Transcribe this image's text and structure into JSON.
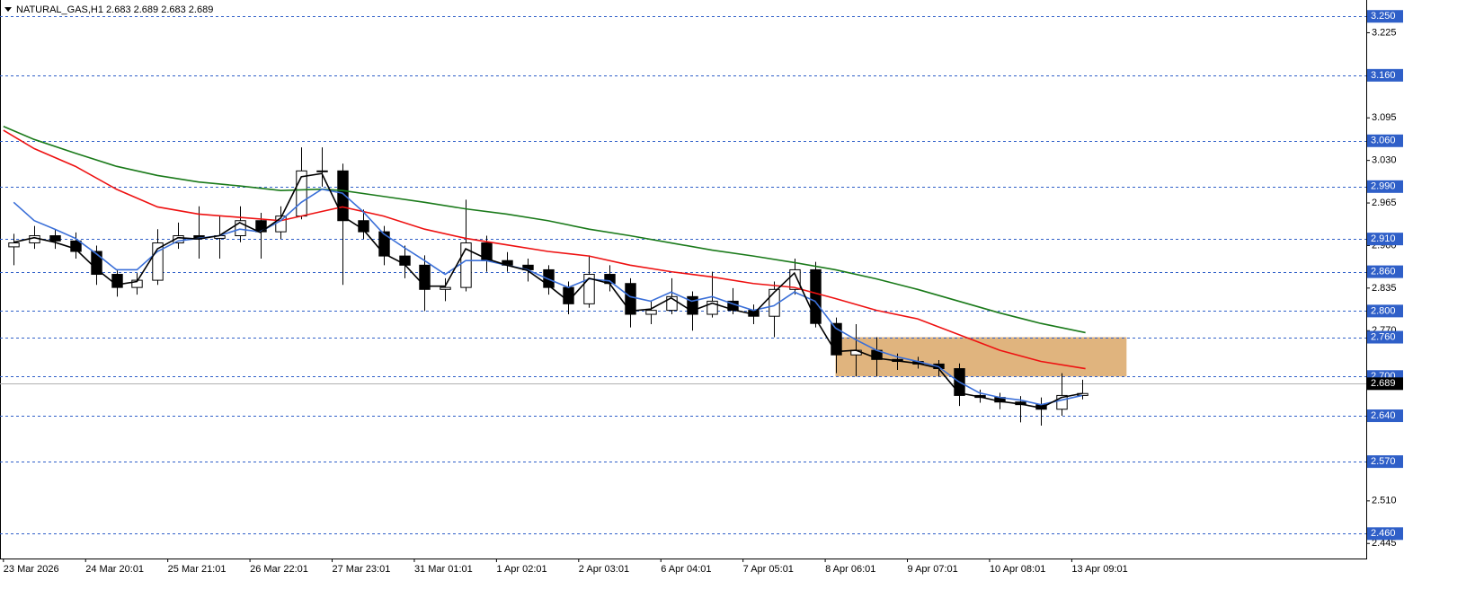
{
  "chart_data": {
    "type": "candlestick",
    "title": "NATURAL_GAS,H1  2.683 2.689 2.683 2.689",
    "xlim": [
      -1,
      398
    ],
    "ylim": [
      2.422,
      3.275
    ],
    "xticks": [
      {
        "value": 0,
        "label": "23 Mar 2026"
      },
      {
        "value": 24,
        "label": "24 Mar 20:01"
      },
      {
        "value": 48,
        "label": "25 Mar 21:01"
      },
      {
        "value": 72,
        "label": "26 Mar 22:01"
      },
      {
        "value": 96,
        "label": "27 Mar 23:01"
      },
      {
        "value": 120,
        "label": "31 Mar 01:01"
      },
      {
        "value": 144,
        "label": "1 Apr 02:01"
      },
      {
        "value": 168,
        "label": "2 Apr 03:01"
      },
      {
        "value": 192,
        "label": "6 Apr 04:01"
      },
      {
        "value": 216,
        "label": "7 Apr 05:01"
      },
      {
        "value": 240,
        "label": "8 Apr 06:01"
      },
      {
        "value": 264,
        "label": "9 Apr 07:01"
      },
      {
        "value": 288,
        "label": "10 Apr 08:01"
      },
      {
        "value": 312,
        "label": "13 Apr 09:01"
      }
    ],
    "yticks": [
      3.225,
      3.095,
      {
        "value": 3.03,
        "label": "3.030"
      },
      2.965,
      {
        "value": 2.9,
        "label": "2.900"
      },
      2.835,
      {
        "value": 2.77,
        "label": "2.770"
      },
      {
        "value": 2.51,
        "label": "2.510"
      },
      2.445
    ],
    "x": [
      3,
      9,
      15,
      21,
      27,
      33,
      39,
      45,
      51,
      57,
      63,
      69,
      75,
      81,
      87,
      93,
      99,
      105,
      111,
      117,
      123,
      129,
      135,
      141,
      147,
      153,
      159,
      165,
      171,
      177,
      183,
      189,
      195,
      201,
      207,
      213,
      219,
      225,
      231,
      237,
      243,
      249,
      255,
      261,
      267,
      273,
      279,
      285,
      291,
      297,
      303,
      309,
      315
    ],
    "open": [
      2.898,
      2.904,
      2.915,
      2.907,
      2.891,
      2.856,
      2.836,
      2.847,
      2.904,
      2.915,
      2.911,
      2.915,
      2.938,
      2.921,
      2.945,
      3.014,
      3.014,
      2.938,
      2.921,
      2.884,
      2.87,
      2.833,
      2.836,
      2.904,
      2.877,
      2.87,
      2.863,
      2.836,
      2.811,
      2.856,
      2.842,
      2.795,
      2.801,
      2.822,
      2.795,
      2.815,
      2.801,
      2.792,
      2.833,
      2.863,
      2.781,
      2.733,
      2.74,
      2.726,
      2.723,
      2.719,
      2.712,
      2.671,
      2.668,
      2.661,
      2.657,
      2.65,
      2.671
    ],
    "high": [
      2.918,
      2.93,
      2.925,
      2.92,
      2.9,
      2.862,
      2.858,
      2.925,
      2.935,
      2.96,
      2.945,
      2.96,
      2.95,
      2.96,
      3.05,
      3.05,
      3.025,
      2.955,
      2.93,
      2.9,
      2.885,
      2.85,
      2.97,
      2.915,
      2.89,
      2.88,
      2.87,
      2.845,
      2.885,
      2.87,
      2.85,
      2.815,
      2.85,
      2.83,
      2.86,
      2.835,
      2.81,
      2.845,
      2.88,
      2.875,
      2.79,
      2.78,
      2.76,
      2.735,
      2.73,
      2.725,
      2.72,
      2.68,
      2.675,
      2.67,
      2.668,
      2.705,
      2.695
    ],
    "low": [
      2.87,
      2.895,
      2.895,
      2.88,
      2.84,
      2.822,
      2.825,
      2.84,
      2.895,
      2.88,
      2.88,
      2.905,
      2.88,
      2.91,
      2.94,
      2.99,
      2.84,
      2.91,
      2.87,
      2.85,
      2.8,
      2.815,
      2.83,
      2.86,
      2.86,
      2.845,
      2.825,
      2.795,
      2.805,
      2.83,
      2.775,
      2.78,
      2.795,
      2.77,
      2.79,
      2.795,
      2.78,
      2.76,
      2.825,
      2.775,
      2.705,
      2.7,
      2.7,
      2.71,
      2.712,
      2.7,
      2.655,
      2.66,
      2.65,
      2.63,
      2.625,
      2.64,
      2.665
    ],
    "close": [
      2.904,
      2.915,
      2.907,
      2.891,
      2.856,
      2.836,
      2.847,
      2.904,
      2.915,
      2.911,
      2.915,
      2.938,
      2.921,
      2.945,
      3.014,
      3.014,
      2.938,
      2.921,
      2.884,
      2.87,
      2.833,
      2.836,
      2.904,
      2.877,
      2.87,
      2.863,
      2.836,
      2.811,
      2.856,
      2.842,
      2.795,
      2.801,
      2.822,
      2.795,
      2.815,
      2.801,
      2.792,
      2.833,
      2.863,
      2.781,
      2.733,
      2.74,
      2.726,
      2.723,
      2.719,
      2.712,
      2.671,
      2.668,
      2.661,
      2.657,
      2.65,
      2.671,
      2.674
    ],
    "series": [
      {
        "color": "#1a7a1a",
        "x": [
          0,
          9,
          21,
          33,
          45,
          57,
          69,
          81,
          93,
          99,
          111,
          123,
          135,
          147,
          159,
          171,
          183,
          195,
          207,
          219,
          231,
          243,
          255,
          267,
          279,
          291,
          303,
          316
        ],
        "values": [
          3.082,
          3.062,
          3.041,
          3.021,
          3.007,
          2.997,
          2.991,
          2.984,
          2.986,
          2.984,
          2.975,
          2.966,
          2.956,
          2.948,
          2.938,
          2.925,
          2.915,
          2.904,
          2.893,
          2.884,
          2.874,
          2.863,
          2.849,
          2.833,
          2.815,
          2.797,
          2.781,
          2.767
        ]
      },
      {
        "color": "#ee1111",
        "x": [
          0,
          9,
          21,
          33,
          45,
          57,
          69,
          81,
          93,
          99,
          111,
          123,
          135,
          147,
          159,
          171,
          183,
          195,
          207,
          219,
          231,
          243,
          255,
          267,
          279,
          291,
          303,
          316
        ],
        "values": [
          3.076,
          3.048,
          3.021,
          2.986,
          2.959,
          2.948,
          2.943,
          2.938,
          2.952,
          2.959,
          2.945,
          2.925,
          2.911,
          2.901,
          2.891,
          2.884,
          2.87,
          2.86,
          2.852,
          2.842,
          2.836,
          2.819,
          2.801,
          2.788,
          2.764,
          2.74,
          2.723,
          2.712
        ]
      },
      {
        "color": "#3a6fd8",
        "values": [
          2.966,
          2.938,
          2.925,
          2.911,
          2.888,
          2.863,
          2.863,
          2.891,
          2.907,
          2.911,
          2.915,
          2.925,
          2.921,
          2.938,
          2.966,
          2.986,
          2.98,
          2.952,
          2.918,
          2.897,
          2.877,
          2.856,
          2.877,
          2.877,
          2.87,
          2.863,
          2.849,
          2.836,
          2.849,
          2.846,
          2.822,
          2.815,
          2.829,
          2.815,
          2.822,
          2.811,
          2.801,
          2.808,
          2.829,
          2.815,
          2.774,
          2.756,
          2.74,
          2.73,
          2.723,
          2.715,
          2.692,
          2.675,
          2.668,
          2.664,
          2.657,
          2.664,
          2.671
        ]
      },
      {
        "color": "#000000",
        "values": [
          2.905,
          2.912,
          2.905,
          2.895,
          2.865,
          2.84,
          2.845,
          2.895,
          2.912,
          2.91,
          2.915,
          2.935,
          2.92,
          2.942,
          3.005,
          3.01,
          2.945,
          2.925,
          2.888,
          2.872,
          2.838,
          2.838,
          2.895,
          2.88,
          2.87,
          2.862,
          2.84,
          2.815,
          2.85,
          2.842,
          2.8,
          2.803,
          2.82,
          2.8,
          2.812,
          2.802,
          2.795,
          2.828,
          2.858,
          2.79,
          2.738,
          2.74,
          2.728,
          2.724,
          2.72,
          2.713,
          2.675,
          2.669,
          2.662,
          2.658,
          2.652,
          2.668,
          2.674
        ]
      }
    ],
    "levels": [
      {
        "value": 3.25,
        "label": "3.250"
      },
      {
        "value": 3.16,
        "label": "3.160"
      },
      {
        "value": 3.06,
        "label": "3.060"
      },
      {
        "value": 2.99,
        "label": "2.990"
      },
      {
        "value": 2.91,
        "label": "2.910"
      },
      {
        "value": 2.86,
        "label": "2.860"
      },
      {
        "value": 2.8,
        "label": "2.800"
      },
      {
        "value": 2.76,
        "label": "2.760"
      },
      {
        "value": 2.7,
        "label": "2.700"
      },
      {
        "value": 2.64,
        "label": "2.640"
      },
      {
        "value": 2.57,
        "label": "2.570"
      },
      {
        "value": 2.46,
        "label": "2.460"
      }
    ],
    "level_color": "#2f5fc8",
    "zone": {
      "x": [
        243,
        328
      ],
      "y": [
        2.7,
        2.76
      ],
      "color": "#e0b47e"
    },
    "price_line": 2.689
  }
}
